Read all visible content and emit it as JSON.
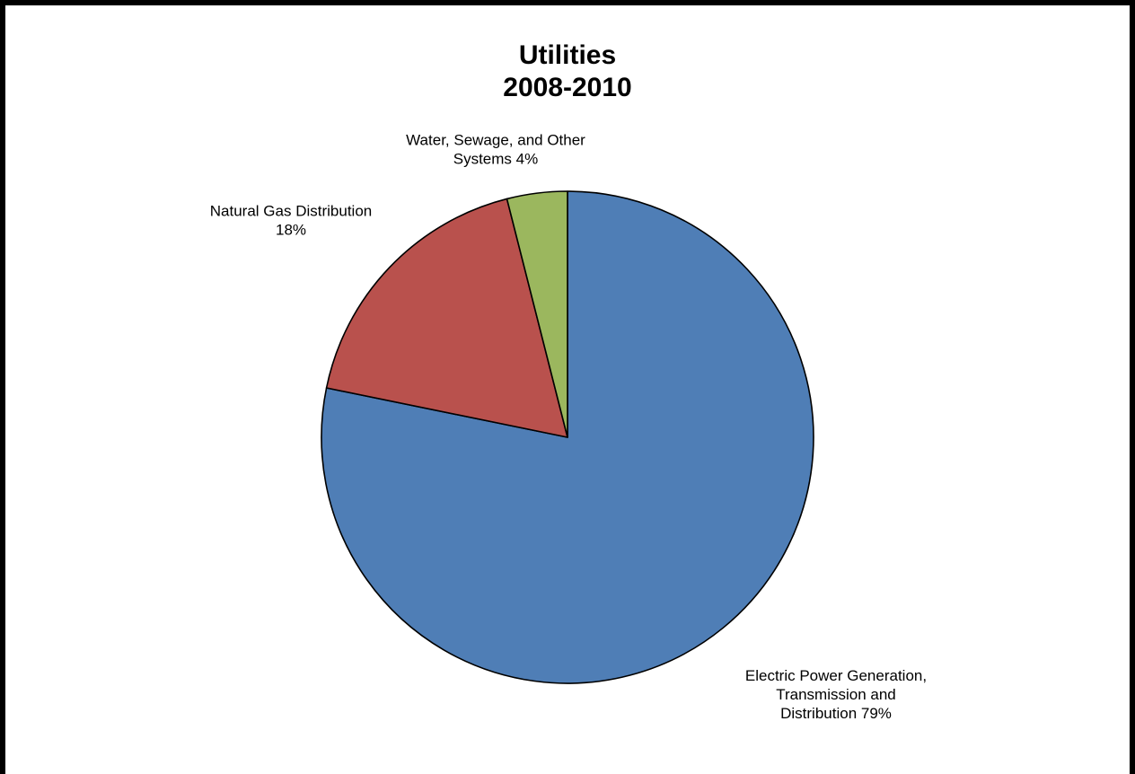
{
  "chart_data": {
    "type": "pie",
    "title": "Utilities",
    "subtitle": "2008-2010",
    "slices": [
      {
        "label": "Electric Power Generation, Transmission and Distribution",
        "label_lines": [
          "Electric Power Generation,",
          "Transmission and",
          "Distribution 79%"
        ],
        "value": 79,
        "color": "#4F7EB6"
      },
      {
        "label": "Natural Gas Distribution",
        "label_lines": [
          "Natural Gas Distribution",
          "18%"
        ],
        "value": 18,
        "color": "#B9514D"
      },
      {
        "label": "Water, Sewage, and Other Systems",
        "label_lines": [
          "Water, Sewage, and Other",
          "Systems 4%"
        ],
        "value": 4,
        "color": "#9BB75E"
      }
    ],
    "start_angle": "12 o'clock",
    "direction": "clockwise",
    "legend": "none",
    "edge_color": "#000000"
  }
}
